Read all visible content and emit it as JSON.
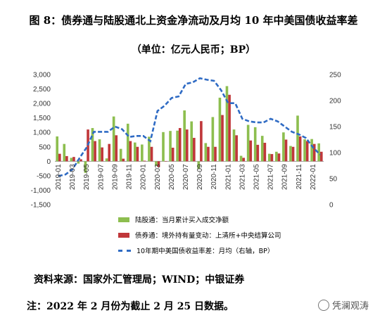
{
  "title": "图 8：债券通与陆股通北上资金净流动及月均 10 年中美国债收益率差",
  "subtitle": "（单位：亿元人民币；BP）",
  "source": "资料来源：国家外汇管理局；WIND；中银证券",
  "note": "注：2022 年 2 月份为截止 2 月 25 日数据。",
  "watermark": "凭澜观涛",
  "colors": {
    "stock": "#8dbe4f",
    "bond": "#c0373a",
    "spread": "#2f6bc4"
  },
  "chart_data": {
    "type": "bar+line",
    "categories": [
      "2019-01",
      "2019-02",
      "2019-03",
      "2019-04",
      "2019-05",
      "2019-06",
      "2019-07",
      "2019-08",
      "2019-09",
      "2019-10",
      "2019-11",
      "2019-12",
      "2020-01",
      "2020-02",
      "2020-03",
      "2020-04",
      "2020-05",
      "2020-06",
      "2020-07",
      "2020-08",
      "2020-09",
      "2020-10",
      "2020-11",
      "2020-12",
      "2021-01",
      "2021-02",
      "2021-03",
      "2021-04",
      "2021-05",
      "2021-06",
      "2021-07",
      "2021-08",
      "2021-09",
      "2021-10",
      "2021-11",
      "2021-12",
      "2022-01",
      "2022-02"
    ],
    "x_tick_labels": [
      "2019-01",
      "2019-03",
      "2019-05",
      "2019-07",
      "2019-09",
      "2019-11",
      "2020-01",
      "2020-03",
      "2020-05",
      "2020-07",
      "2020-09",
      "2020-11",
      "2021-01",
      "2021-03",
      "2021-05",
      "2021-07",
      "2021-09",
      "2021-11",
      "2022-01"
    ],
    "y_left_ticks": [
      "3,000",
      "2,500",
      "2,000",
      "1,500",
      "1,000",
      "500",
      "0",
      "-500",
      "-1,000",
      "-1,500"
    ],
    "y_right_ticks": [
      "250",
      "200",
      "150",
      "100",
      "50",
      "0"
    ],
    "ylim_left": [
      -1500,
      3000
    ],
    "ylim_right": [
      0,
      250
    ],
    "series": [
      {
        "name": "陆股通：当月累计买入成交净额",
        "type": "bar",
        "values": [
          860,
          600,
          120,
          -80,
          -400,
          1150,
          760,
          100,
          1550,
          430,
          1300,
          650,
          580,
          850,
          -160,
          1010,
          1050,
          1060,
          1760,
          1380,
          -270,
          630,
          1530,
          2200,
          2600,
          1100,
          190,
          1260,
          1180,
          880,
          260,
          330,
          1000,
          530,
          1580,
          760,
          770,
          620
        ]
      },
      {
        "name": "债券通：境外持有量变动：上清所+中央结算公司",
        "type": "bar",
        "values": [
          260,
          180,
          150,
          70,
          1100,
          700,
          480,
          600,
          900,
          90,
          700,
          500,
          20,
          500,
          -200,
          5,
          470,
          1150,
          1100,
          810,
          1390,
          500,
          500,
          1600,
          2300,
          900,
          120,
          720,
          570,
          640,
          250,
          270,
          750,
          500,
          860,
          700,
          600,
          330
        ]
      },
      {
        "name": "10年期中美国债收益率差：月均（右轴，BP）",
        "type": "line",
        "values": [
          55,
          58,
          68,
          90,
          110,
          140,
          140,
          140,
          150,
          145,
          130,
          132,
          132,
          122,
          180,
          190,
          205,
          208,
          232,
          235,
          243,
          240,
          238,
          220,
          195,
          195,
          165,
          160,
          158,
          158,
          165,
          160,
          150,
          140,
          135,
          128,
          110,
          96
        ]
      }
    ],
    "xlabel": "",
    "ylabel": "",
    "grid": false,
    "legend": "bottom"
  }
}
